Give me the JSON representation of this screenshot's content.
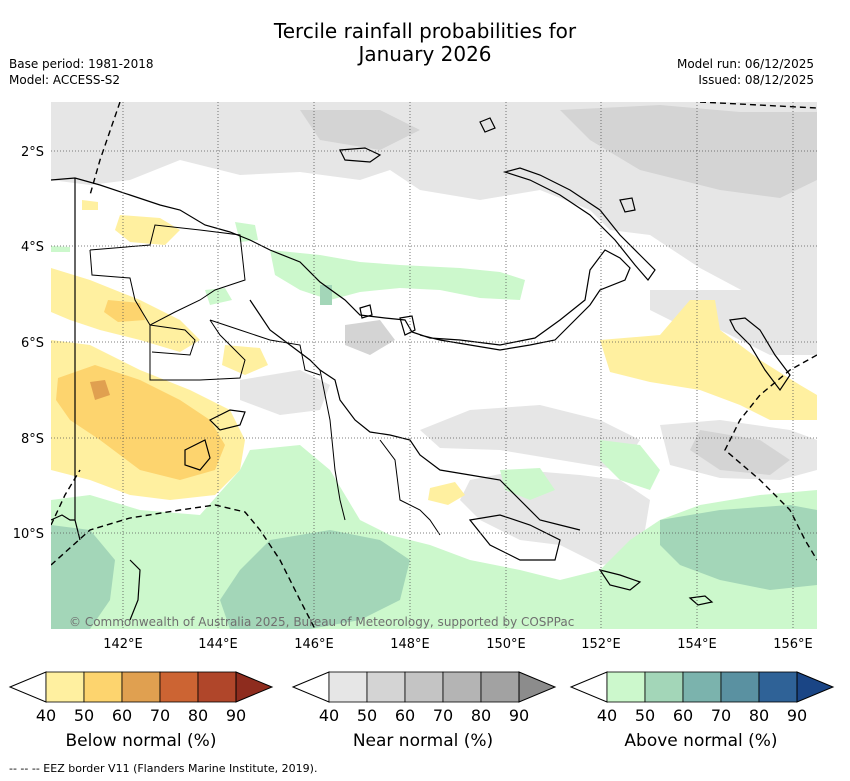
{
  "title_line1": "Tercile rainfall probabilities for",
  "title_line2": "January 2026",
  "base_period": "Base period: 1981-2018",
  "model": "Model: ACCESS-S2",
  "model_run": "Model run: 06/12/2025",
  "issued": "Issued: 08/12/2025",
  "lat_labels": [
    "2°S",
    "4°S",
    "6°S",
    "8°S",
    "10°S"
  ],
  "lon_labels": [
    "142°E",
    "144°E",
    "146°E",
    "148°E",
    "150°E",
    "152°E",
    "154°E",
    "156°E"
  ],
  "copyright": "© Commonwealth of Australia 2025, Bureau of Meteorology, supported by COSPPac",
  "colorbars": [
    {
      "label": "Below normal (%)",
      "ticks": [
        "40",
        "50",
        "60",
        "70",
        "80",
        "90"
      ],
      "colors": [
        "#fff0a0",
        "#fdd46e",
        "#e0a050",
        "#cc6433",
        "#b0462a",
        "#8e2c1e"
      ]
    },
    {
      "label": "Near normal (%)",
      "ticks": [
        "40",
        "50",
        "60",
        "70",
        "80",
        "90"
      ],
      "colors": [
        "#e6e6e6",
        "#d4d4d4",
        "#c4c4c4",
        "#b4b4b4",
        "#a2a2a2",
        "#8c8c8c"
      ]
    },
    {
      "label": "Above normal (%)",
      "ticks": [
        "40",
        "50",
        "60",
        "70",
        "80",
        "90"
      ],
      "colors": [
        "#ccf8cc",
        "#a3d6b8",
        "#7bb3ad",
        "#5a91a1",
        "#2f6297",
        "#1a4585"
      ]
    }
  ],
  "footer": "-- -- -- EEZ border V11 (Flanders Marine Institute, 2019)."
}
